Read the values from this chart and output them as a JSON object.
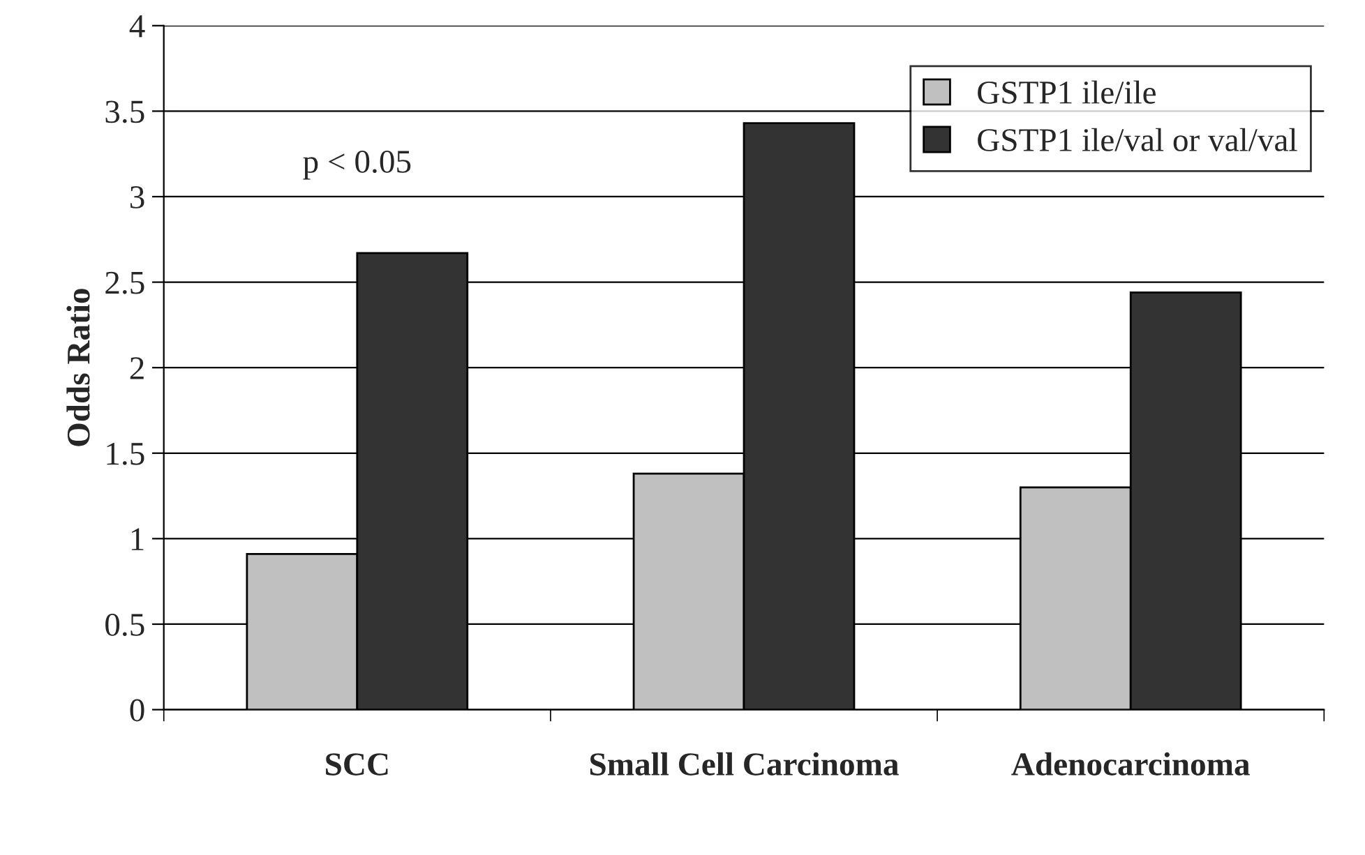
{
  "chart_data": {
    "type": "bar",
    "ylabel": "Odds Ratio",
    "categories": [
      "SCC",
      "Small Cell Carcinoma",
      "Adenocarcinoma"
    ],
    "series": [
      {
        "name": "GSTP1 ile/ile",
        "color": "#c0c0c0",
        "values": [
          0.91,
          1.38,
          1.3
        ]
      },
      {
        "name": "GSTP1 ile/val or val/val",
        "color": "#333333",
        "values": [
          2.67,
          3.43,
          2.44
        ]
      }
    ],
    "ylim": [
      0,
      4
    ],
    "yticks": [
      0,
      0.5,
      1,
      1.5,
      2,
      2.5,
      3,
      3.5,
      4
    ],
    "grid": "y",
    "legend": "top right",
    "annotations": [
      "p < 0.05"
    ]
  }
}
